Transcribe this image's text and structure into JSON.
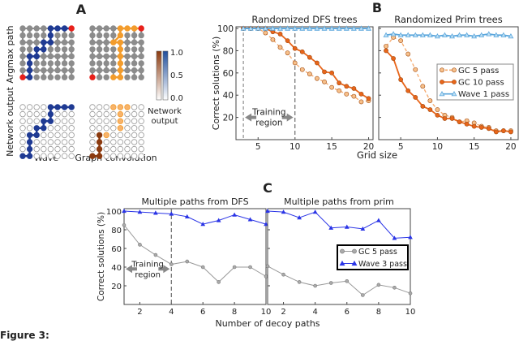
{
  "panel_a": {
    "label": "A",
    "row_labels": [
      "Argmax path",
      "Network output"
    ],
    "col_labels": [
      "Wave",
      "Graph convolution"
    ],
    "colorbar": {
      "ticks": [
        "1.0",
        "0.5",
        "0.0"
      ],
      "label_lines": [
        "Network",
        "output"
      ]
    },
    "grid_size": 8,
    "wave_path": [
      [
        0,
        7
      ],
      [
        1,
        7
      ],
      [
        1,
        6
      ],
      [
        1,
        5
      ],
      [
        1,
        4
      ],
      [
        2,
        4
      ],
      [
        2,
        3
      ],
      [
        3,
        3
      ],
      [
        3,
        2
      ],
      [
        4,
        2
      ],
      [
        4,
        1
      ],
      [
        4,
        0
      ],
      [
        5,
        0
      ],
      [
        6,
        0
      ],
      [
        7,
        0
      ]
    ],
    "gc_path": [
      [
        3,
        7
      ],
      [
        4,
        7
      ],
      [
        4,
        6
      ],
      [
        4,
        5
      ],
      [
        4,
        4
      ],
      [
        4,
        3
      ],
      [
        4,
        2
      ],
      [
        3,
        2
      ],
      [
        4,
        1
      ],
      [
        4,
        0
      ],
      [
        5,
        0
      ],
      [
        6,
        0
      ],
      [
        7,
        0
      ]
    ],
    "gc_output_strong": [
      [
        0,
        7
      ],
      [
        1,
        7
      ],
      [
        1,
        6
      ],
      [
        1,
        5
      ],
      [
        1,
        4
      ]
    ],
    "gc_output_weak": [
      [
        2,
        4
      ],
      [
        3,
        0
      ],
      [
        4,
        0
      ],
      [
        5,
        0
      ],
      [
        4,
        1
      ],
      [
        4,
        2
      ],
      [
        4,
        3
      ]
    ],
    "colors": {
      "wave": "#1f3a93",
      "gc": "#f39c2c",
      "gc_strong": "#8b3a0f",
      "node": "#8c8c8c",
      "endpoint": "#e8201a"
    }
  },
  "panel_b_label": "B",
  "panel_c_label": "C",
  "caption_fragment": "Figure 3:",
  "chart_data": [
    {
      "type": "line",
      "title": "Randomized DFS trees",
      "xlabel": "Grid size",
      "ylabel": "Correct solutions (%)",
      "xlim": [
        2,
        20.6
      ],
      "ylim": [
        0,
        101.5
      ],
      "xticks": [
        5,
        10,
        15,
        20
      ],
      "yticks": [
        20,
        40,
        60,
        80,
        100
      ],
      "x": [
        3,
        4,
        5,
        6,
        7,
        8,
        9,
        10,
        11,
        12,
        13,
        14,
        15,
        16,
        17,
        18,
        19,
        20
      ],
      "series": [
        {
          "name": "GC 5 pass",
          "color": "#f5a86a",
          "style": "dashed-circle",
          "values": [
            100,
            100,
            100,
            96,
            90,
            83,
            78,
            69,
            63,
            59,
            55,
            52,
            47,
            44,
            41,
            39,
            34,
            35
          ]
        },
        {
          "name": "GC 10 pass",
          "color": "#e8651a",
          "style": "solid-circle",
          "values": [
            100,
            100,
            100,
            100,
            97,
            95,
            89,
            82,
            79,
            74,
            69,
            61,
            60,
            51,
            48,
            46,
            41,
            37
          ]
        },
        {
          "name": "Wave 1 pass",
          "color": "#5aa6dc",
          "style": "solid-triangle",
          "values": [
            100,
            100,
            100,
            100,
            100,
            100,
            100,
            100,
            100,
            100,
            100,
            100,
            100,
            100,
            100,
            100,
            100,
            100
          ]
        }
      ],
      "annotation": {
        "text_lines": [
          "Training",
          "region"
        ],
        "x_range": [
          3,
          10
        ]
      }
    },
    {
      "type": "line",
      "title": "Randomized Prim trees",
      "xlim": [
        2,
        21
      ],
      "ylim": [
        0,
        101.5
      ],
      "xticks": [
        5,
        10,
        15,
        20
      ],
      "x": [
        3,
        4,
        5,
        6,
        7,
        8,
        9,
        10,
        11,
        12,
        13,
        14,
        15,
        16,
        17,
        18,
        19,
        20
      ],
      "series": [
        {
          "name": "GC 5 pass",
          "color": "#f5a86a",
          "style": "dashed-circle",
          "values": [
            84,
            92,
            89,
            77,
            63,
            48,
            35,
            27,
            22,
            20,
            16,
            17,
            15,
            12,
            11,
            8,
            8,
            8
          ]
        },
        {
          "name": "GC 10 pass",
          "color": "#e8651a",
          "style": "solid-circle",
          "values": [
            80,
            73,
            54,
            44,
            38,
            30,
            27,
            22,
            19,
            19,
            16,
            14,
            12,
            11,
            10,
            7,
            8,
            7
          ]
        },
        {
          "name": "Wave 1 pass",
          "color": "#5aa6dc",
          "style": "solid-triangle",
          "values": [
            94,
            95,
            94,
            94,
            94,
            94,
            94,
            93,
            94,
            93,
            94,
            94,
            93,
            94,
            95,
            94,
            94,
            93
          ]
        }
      ],
      "legend": "right"
    },
    {
      "type": "line",
      "title": "Multiple paths from DFS",
      "xlabel": "Number of decoy paths",
      "ylabel": "Correct solutions (%)",
      "xlim": [
        1,
        10
      ],
      "ylim": [
        0,
        102.6
      ],
      "xticks": [
        2,
        4,
        6,
        8,
        10
      ],
      "yticks": [
        20,
        40,
        60,
        80,
        100
      ],
      "x": [
        1,
        2,
        3,
        4,
        5,
        6,
        7,
        8,
        9,
        10
      ],
      "series": [
        {
          "name": "GC 5 pass",
          "color": "#999999",
          "style": "thin-circle",
          "values": [
            85,
            64,
            53,
            43,
            46,
            40,
            24,
            40,
            40,
            30
          ]
        },
        {
          "name": "Wave 3 pass",
          "color": "#2b35e6",
          "style": "thin-triangle",
          "values": [
            100,
            99,
            98,
            97,
            94,
            86,
            90,
            96,
            91,
            86
          ]
        }
      ],
      "annotation": {
        "text_lines": [
          "Training",
          "region"
        ],
        "x_range": [
          1,
          4
        ]
      }
    },
    {
      "type": "line",
      "title": "Multiple paths from prim",
      "xlim": [
        1,
        10
      ],
      "ylim": [
        0,
        102.6
      ],
      "xticks": [
        2,
        4,
        6,
        8,
        10
      ],
      "x": [
        1,
        2,
        3,
        4,
        5,
        6,
        7,
        8,
        9,
        10
      ],
      "series": [
        {
          "name": "GC 5 pass",
          "color": "#999999",
          "style": "thin-circle",
          "values": [
            41,
            32,
            24,
            20,
            23,
            25,
            10,
            21,
            18,
            12
          ]
        },
        {
          "name": "Wave 3 pass",
          "color": "#2b35e6",
          "style": "thin-triangle",
          "values": [
            100,
            99,
            93,
            99,
            82,
            83,
            81,
            90,
            71,
            72
          ]
        }
      ],
      "legend": "right"
    }
  ]
}
